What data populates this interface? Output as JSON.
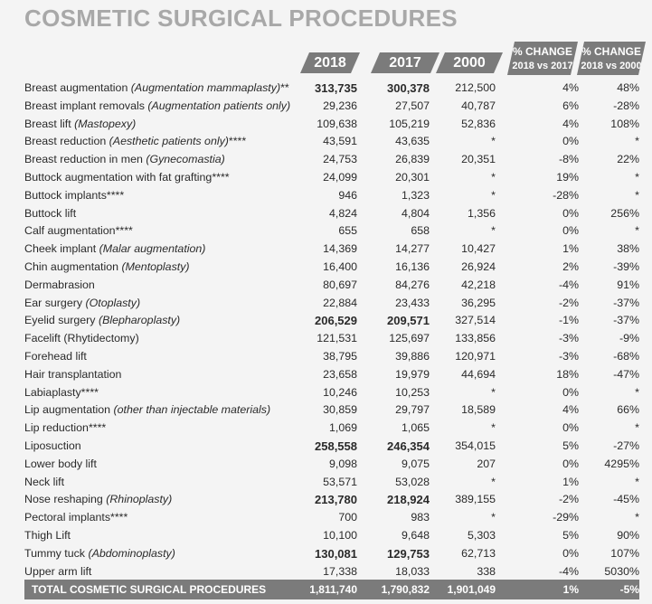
{
  "title": "COSMETIC SURGICAL PROCEDURES",
  "headers": {
    "y2018": "2018",
    "y2017": "2017",
    "y2000": "2000",
    "pct1_top": "% CHANGE",
    "pct1_bottom": "2018 vs 2017",
    "pct2_top": "% CHANGE",
    "pct2_bottom": "2018 vs 2000"
  },
  "rows": [
    {
      "name": "Breast augmentation ",
      "italic": "(Augmentation mammaplasty)",
      "suffix": "**",
      "v2018": "313,735",
      "v2017": "300,378",
      "v2000": "212,500",
      "p1": "4%",
      "p2": "48%",
      "bold2018": true,
      "bold2017": true
    },
    {
      "name": "Breast implant removals ",
      "italic": "(Augmentation patients only)",
      "suffix": "",
      "v2018": "29,236",
      "v2017": "27,507",
      "v2000": "40,787",
      "p1": "6%",
      "p2": "-28%"
    },
    {
      "name": "Breast lift ",
      "italic": "(Mastopexy)",
      "suffix": "",
      "v2018": "109,638",
      "v2017": "105,219",
      "v2000": "52,836",
      "p1": "4%",
      "p2": "108%"
    },
    {
      "name": "Breast reduction ",
      "italic": "(Aesthetic patients only)",
      "suffix": "****",
      "v2018": "43,591",
      "v2017": "43,635",
      "v2000": "*",
      "p1": "0%",
      "p2": "*"
    },
    {
      "name": "Breast reduction in men ",
      "italic": "(Gynecomastia)",
      "suffix": "",
      "v2018": "24,753",
      "v2017": "26,839",
      "v2000": "20,351",
      "p1": "-8%",
      "p2": "22%"
    },
    {
      "name": "Buttock augmentation with fat grafting****",
      "italic": "",
      "suffix": "",
      "v2018": "24,099",
      "v2017": "20,301",
      "v2000": "*",
      "p1": "19%",
      "p2": "*"
    },
    {
      "name": "Buttock implants****",
      "italic": "",
      "suffix": "",
      "v2018": "946",
      "v2017": "1,323",
      "v2000": "*",
      "p1": "-28%",
      "p2": "*"
    },
    {
      "name": "Buttock lift",
      "italic": "",
      "suffix": "",
      "v2018": "4,824",
      "v2017": "4,804",
      "v2000": "1,356",
      "p1": "0%",
      "p2": "256%"
    },
    {
      "name": "Calf augmentation****",
      "italic": "",
      "suffix": "",
      "v2018": "655",
      "v2017": "658",
      "v2000": "*",
      "p1": "0%",
      "p2": "*"
    },
    {
      "name": "Cheek implant ",
      "italic": "(Malar augmentation)",
      "suffix": "",
      "v2018": "14,369",
      "v2017": "14,277",
      "v2000": "10,427",
      "p1": "1%",
      "p2": "38%"
    },
    {
      "name": "Chin augmentation ",
      "italic": "(Mentoplasty)",
      "suffix": "",
      "v2018": "16,400",
      "v2017": "16,136",
      "v2000": "26,924",
      "p1": "2%",
      "p2": "-39%"
    },
    {
      "name": "Dermabrasion",
      "italic": "",
      "suffix": "",
      "v2018": "80,697",
      "v2017": "84,276",
      "v2000": "42,218",
      "p1": "-4%",
      "p2": "91%"
    },
    {
      "name": "Ear surgery ",
      "italic": "(Otoplasty)",
      "suffix": "",
      "v2018": "22,884",
      "v2017": "23,433",
      "v2000": "36,295",
      "p1": "-2%",
      "p2": "-37%"
    },
    {
      "name": "Eyelid surgery ",
      "italic": "(Blepharoplasty)",
      "suffix": "",
      "v2018": "206,529",
      "v2017": "209,571",
      "v2000": "327,514",
      "p1": "-1%",
      "p2": "-37%",
      "bold2018": true,
      "bold2017": true
    },
    {
      "name": "Facelift (Rhytidectomy)",
      "italic": "",
      "suffix": "",
      "v2018": "121,531",
      "v2017": "125,697",
      "v2000": "133,856",
      "p1": "-3%",
      "p2": "-9%"
    },
    {
      "name": "Forehead lift",
      "italic": "",
      "suffix": "",
      "v2018": "38,795",
      "v2017": "39,886",
      "v2000": "120,971",
      "p1": "-3%",
      "p2": "-68%"
    },
    {
      "name": "Hair transplantation",
      "italic": "",
      "suffix": "",
      "v2018": "23,658",
      "v2017": "19,979",
      "v2000": "44,694",
      "p1": "18%",
      "p2": "-47%"
    },
    {
      "name": "Labiaplasty****",
      "italic": "",
      "suffix": "",
      "v2018": "10,246",
      "v2017": "10,253",
      "v2000": "*",
      "p1": "0%",
      "p2": "*"
    },
    {
      "name": "Lip augmentation ",
      "italic": "(other than injectable materials)",
      "suffix": "",
      "v2018": "30,859",
      "v2017": "29,797",
      "v2000": "18,589",
      "p1": "4%",
      "p2": "66%"
    },
    {
      "name": "Lip reduction****",
      "italic": "",
      "suffix": "",
      "v2018": "1,069",
      "v2017": "1,065",
      "v2000": "*",
      "p1": "0%",
      "p2": "*"
    },
    {
      "name": "Liposuction",
      "italic": "",
      "suffix": "",
      "v2018": "258,558",
      "v2017": "246,354",
      "v2000": "354,015",
      "p1": "5%",
      "p2": "-27%",
      "bold2018": true,
      "bold2017": true
    },
    {
      "name": "Lower body lift",
      "italic": "",
      "suffix": "",
      "v2018": "9,098",
      "v2017": "9,075",
      "v2000": "207",
      "p1": "0%",
      "p2": "4295%"
    },
    {
      "name": "Neck lift",
      "italic": "",
      "suffix": "",
      "v2018": "53,571",
      "v2017": "53,028",
      "v2000": "*",
      "p1": "1%",
      "p2": "*"
    },
    {
      "name": "Nose reshaping ",
      "italic": "(Rhinoplasty)",
      "suffix": "",
      "v2018": "213,780",
      "v2017": "218,924",
      "v2000": "389,155",
      "p1": "-2%",
      "p2": "-45%",
      "bold2018": true,
      "bold2017": true
    },
    {
      "name": "Pectoral implants****",
      "italic": "",
      "suffix": "",
      "v2018": "700",
      "v2017": "983",
      "v2000": "*",
      "p1": "-29%",
      "p2": "*"
    },
    {
      "name": "Thigh Lift",
      "italic": "",
      "suffix": "",
      "v2018": "10,100",
      "v2017": "9,648",
      "v2000": "5,303",
      "p1": "5%",
      "p2": "90%"
    },
    {
      "name": "Tummy tuck ",
      "italic": "(Abdominoplasty)",
      "suffix": "",
      "v2018": "130,081",
      "v2017": "129,753",
      "v2000": "62,713",
      "p1": "0%",
      "p2": "107%",
      "bold2018": true,
      "bold2017": true
    },
    {
      "name": "Upper arm lift",
      "italic": "",
      "suffix": "",
      "v2018": "17,338",
      "v2017": "18,033",
      "v2000": "338",
      "p1": "-4%",
      "p2": "5030%"
    }
  ],
  "total": {
    "name": "TOTAL COSMETIC SURGICAL PROCEDURES",
    "v2018": "1,811,740",
    "v2017": "1,790,832",
    "v2000": "1,901,049",
    "p1": "1%",
    "p2": "-5%"
  }
}
